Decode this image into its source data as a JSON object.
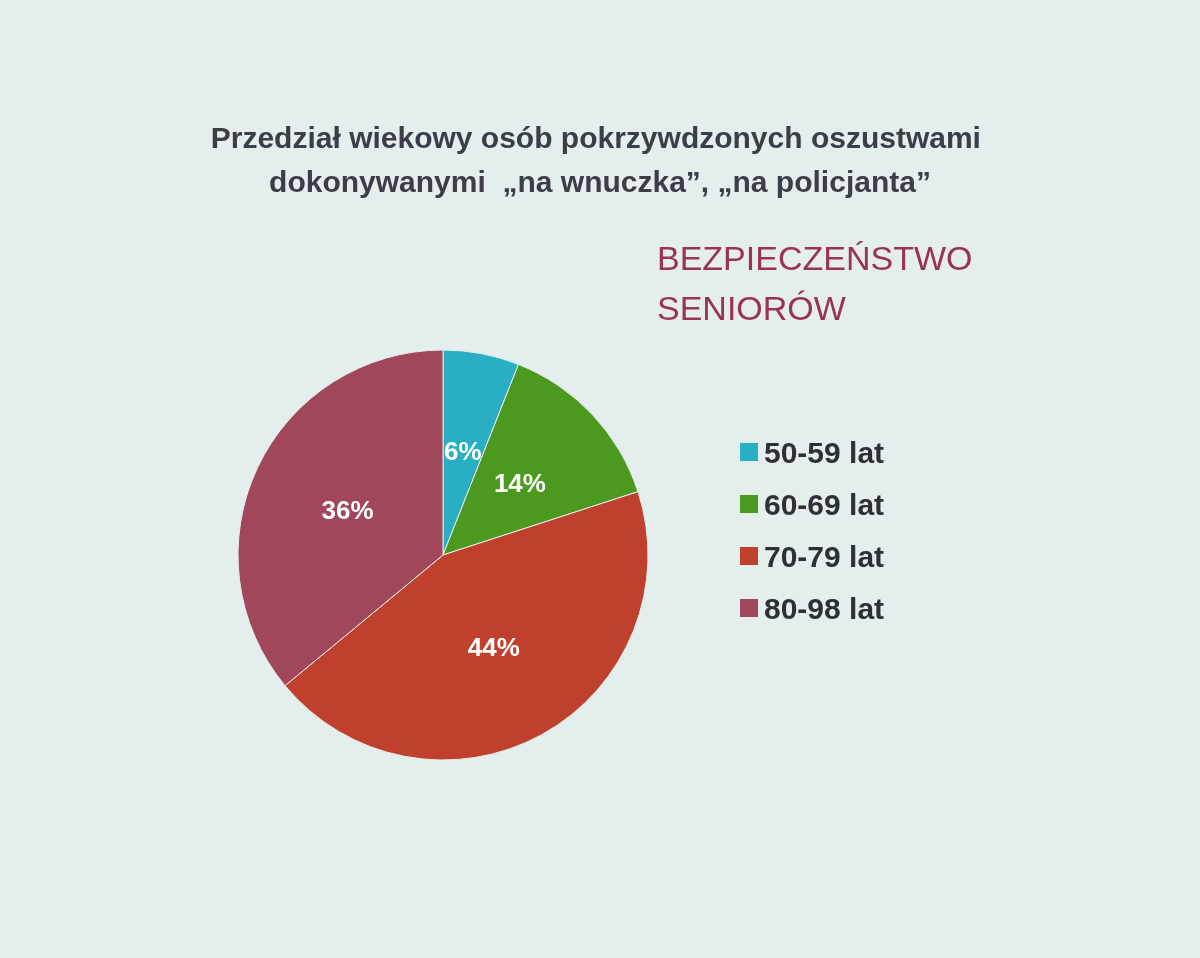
{
  "chart_data": {
    "type": "pie",
    "title": "Przedział wiekowy osób pokrzywdzonych oszustwami dokonywanymi  „na wnuczka”, „na policjanta”",
    "subtitle": "BEZPIECZEŃSTWO SENIORÓW",
    "categories": [
      "50-59 lat",
      "60-69 lat",
      "70-79 lat",
      "80-98 lat"
    ],
    "values": [
      6,
      14,
      44,
      36
    ],
    "colors": [
      "#2aaec4",
      "#4b9a1f",
      "#c0402e",
      "#a0475c"
    ],
    "value_labels": [
      "6%",
      "14%",
      "44%",
      "36%"
    ],
    "legend": "right"
  }
}
